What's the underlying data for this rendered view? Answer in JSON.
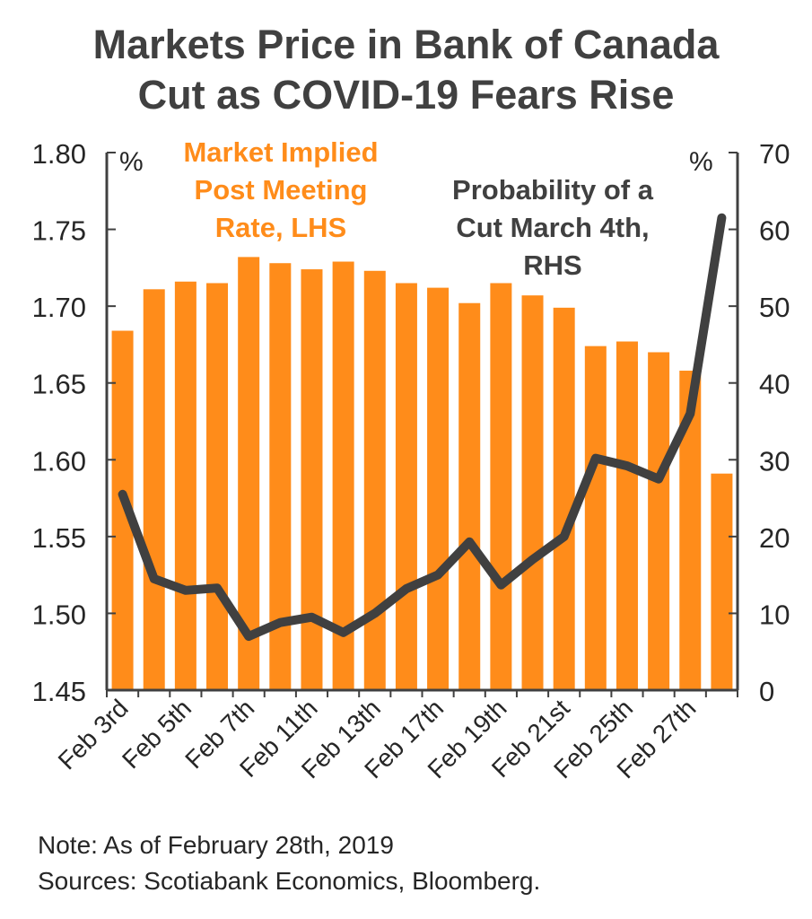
{
  "title": {
    "line1": "Markets Price in Bank of Canada",
    "line2": "Cut as COVID-19 Fears Rise"
  },
  "notes": {
    "note": "Note: As of February 28th, 2019",
    "sources": "Sources: Scotiabank Economics, Bloomberg."
  },
  "colors": {
    "bars": "#ff8c1a",
    "line": "#404040",
    "text": "#262626",
    "title": "#404040"
  },
  "chart_data": {
    "type": "bar",
    "combo": "bar + line (dual axis)",
    "grid": false,
    "legend": "inline labels",
    "x_tick_labels": [
      "Feb 3rd",
      "Feb 5th",
      "Feb 7th",
      "Feb 11th",
      "Feb 13th",
      "Feb 17th",
      "Feb 19th",
      "Feb 21st",
      "Feb 25th",
      "Feb 27th"
    ],
    "left_axis": {
      "unit_label": "%",
      "ylim": [
        1.45,
        1.8
      ],
      "ticks": [
        "1.45",
        "1.50",
        "1.55",
        "1.60",
        "1.65",
        "1.70",
        "1.75",
        "1.80"
      ]
    },
    "right_axis": {
      "unit_label": "%",
      "ylim": [
        0,
        70
      ],
      "ticks": [
        "0",
        "10",
        "20",
        "30",
        "40",
        "50",
        "60",
        "70"
      ]
    },
    "series": [
      {
        "name_lines": [
          "Market Implied",
          "Post Meeting",
          "Rate, LHS"
        ],
        "type": "bar",
        "axis": "left",
        "values": [
          1.684,
          1.711,
          1.716,
          1.715,
          1.732,
          1.728,
          1.724,
          1.729,
          1.723,
          1.715,
          1.712,
          1.702,
          1.715,
          1.707,
          1.699,
          1.674,
          1.677,
          1.67,
          1.658,
          1.591
        ]
      },
      {
        "name_lines": [
          "Probability of a",
          "Cut March 4th,",
          "RHS"
        ],
        "type": "line",
        "axis": "right",
        "values": [
          25.5,
          14.5,
          13.0,
          13.3,
          7.0,
          8.8,
          9.5,
          7.5,
          10.0,
          13.2,
          15.0,
          19.3,
          13.7,
          17.0,
          20.0,
          30.2,
          29.2,
          27.5,
          36.0,
          61.5
        ]
      }
    ]
  }
}
